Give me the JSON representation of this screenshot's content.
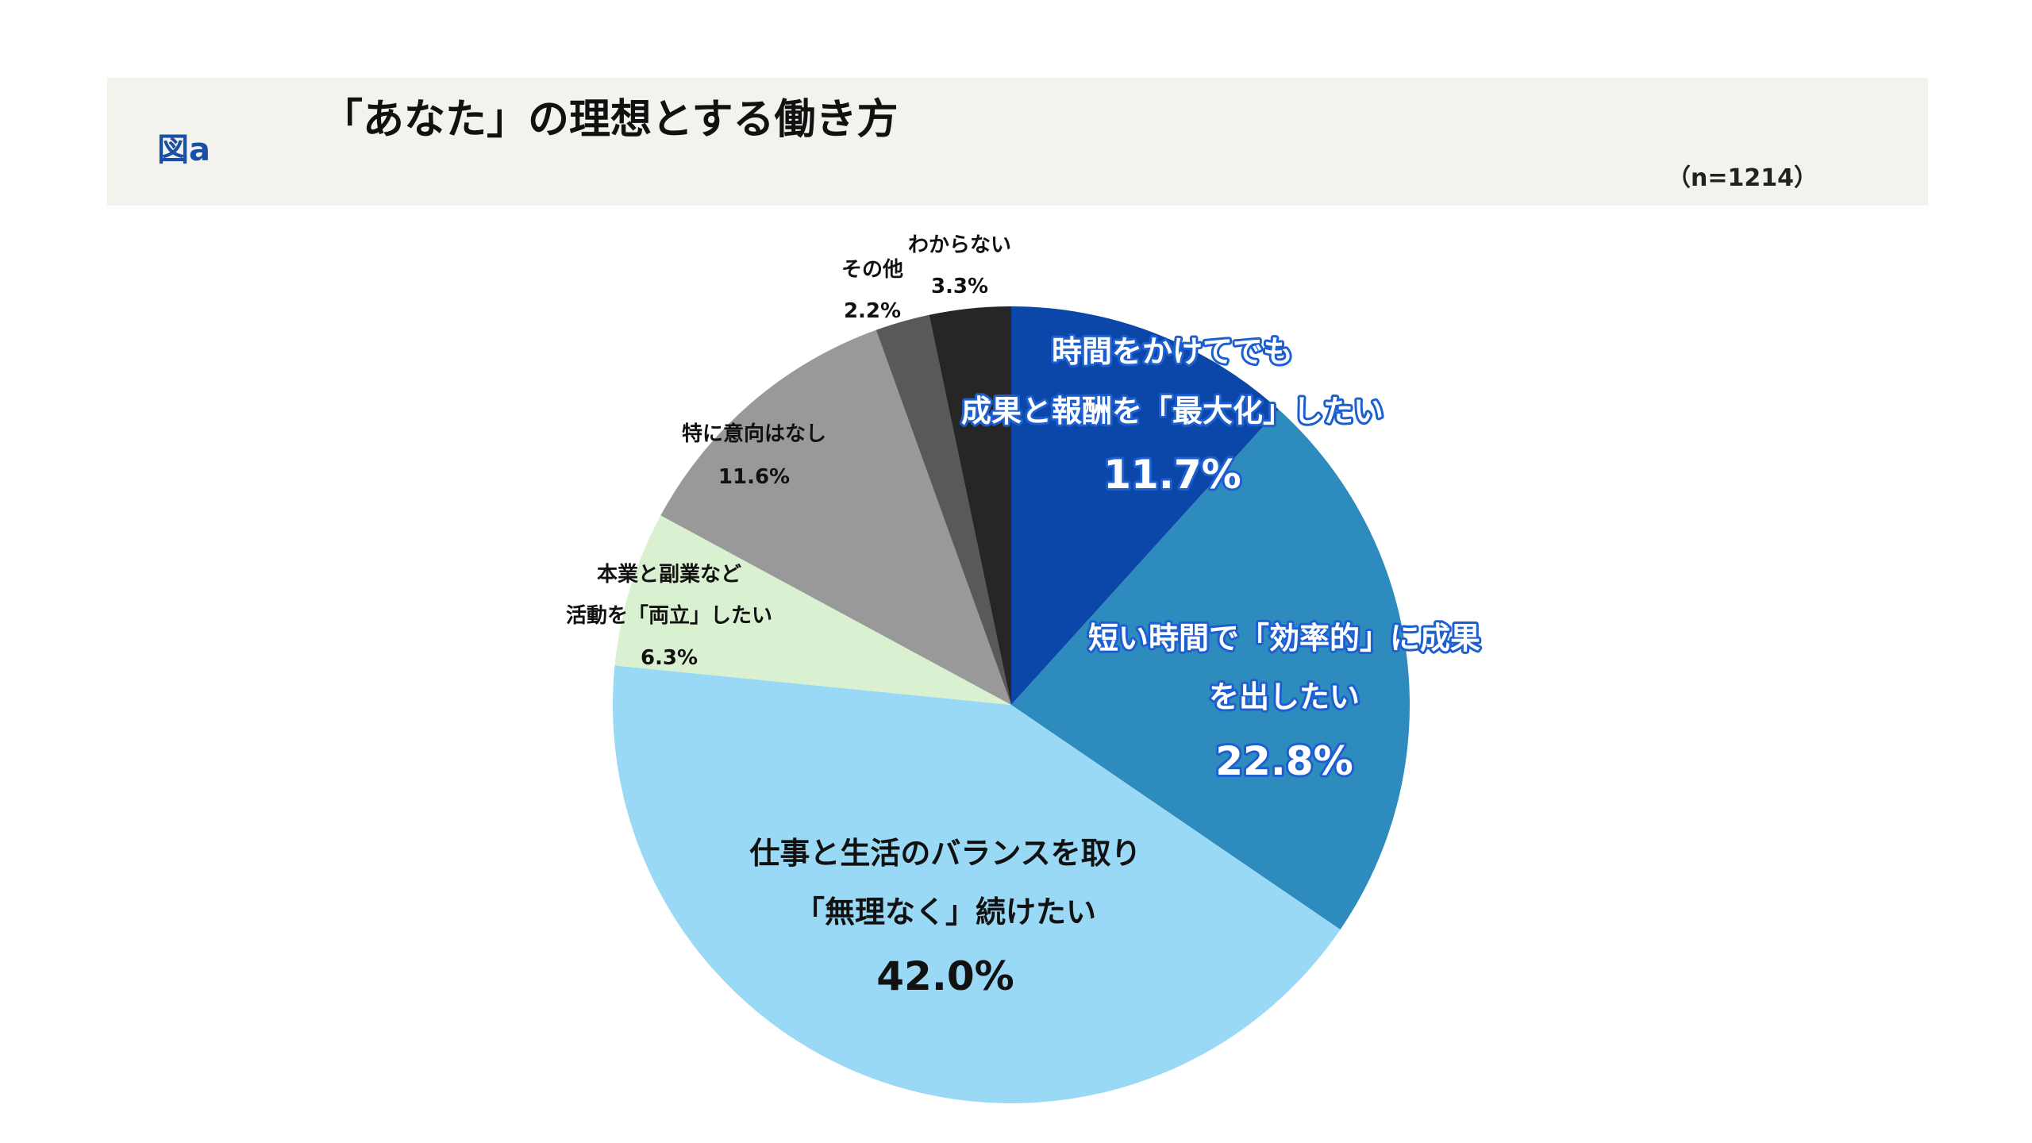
{
  "header": {
    "figure_label": "図a",
    "title": "「あなた」の理想とする働き方",
    "sample_size": "（n=1214）",
    "background": "#f4f2ec",
    "figure_label_color": "#1a4fa8"
  },
  "chart_data": {
    "type": "pie",
    "title": "「あなた」の理想とする働き方",
    "start": "top",
    "direction": "clockwise",
    "slices": [
      {
        "label": [
          "時間をかけてでも",
          "成果と報酬を「最大化」したい"
        ],
        "value": 11.7,
        "value_label": "11.7%",
        "color": "#0a47a8",
        "text_color": "#ffffff"
      },
      {
        "label": [
          "短い時間で「効率的」に成果",
          "を出したい"
        ],
        "value": 22.8,
        "value_label": "22.8%",
        "color": "#2e8bbd",
        "text_color": "#ffffff"
      },
      {
        "label": [
          "仕事と生活のバランスを取り",
          "「無理なく」続けたい"
        ],
        "value": 42.0,
        "value_label": "42.0%",
        "color": "#99d9f5",
        "text_color": "#111111"
      },
      {
        "label": [
          "本業と副業など",
          "活動を「両立」したい"
        ],
        "value": 6.3,
        "value_label": "6.3%",
        "color": "#d9f1d0",
        "text_color": "#111111"
      },
      {
        "label": [
          "特に意向はなし"
        ],
        "value": 11.6,
        "value_label": "11.6%",
        "color": "#999999",
        "text_color": "#111111"
      },
      {
        "label": [
          "その他"
        ],
        "value": 2.2,
        "value_label": "2.2%",
        "color": "#595959",
        "text_color": "#111111"
      },
      {
        "label": [
          "わからない"
        ],
        "value": 3.3,
        "value_label": "3.3%",
        "color": "#262626",
        "text_color": "#111111"
      }
    ]
  }
}
